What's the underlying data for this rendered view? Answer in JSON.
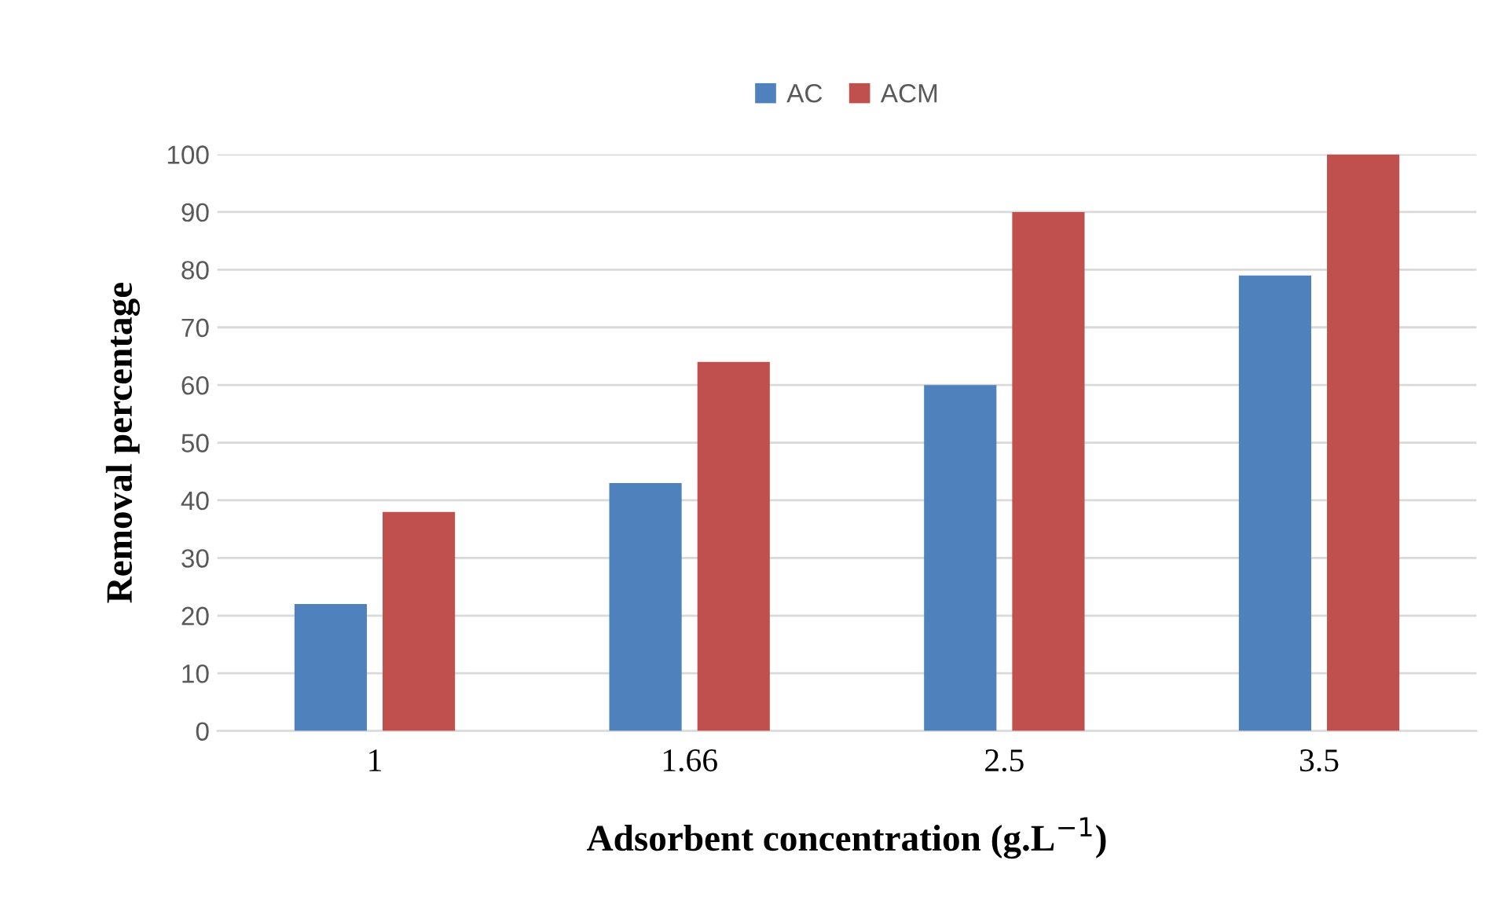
{
  "chart_data": {
    "type": "bar",
    "xlabel": "Adsorbent concentration (g.L$^{−1}$)",
    "ylabel": "Removal percentage",
    "categories": [
      "1",
      "1.66",
      "2.5",
      "3.5"
    ],
    "series": [
      {
        "name": "AC",
        "color": "#4f81bd",
        "values": [
          22,
          43,
          60,
          79
        ]
      },
      {
        "name": "ACM",
        "color": "#c0504d",
        "values": [
          38,
          64,
          90,
          100
        ]
      }
    ],
    "ylim": [
      0,
      100
    ],
    "yticks": [
      0,
      10,
      20,
      30,
      40,
      50,
      60,
      70,
      80,
      90,
      100
    ],
    "grid": "y",
    "legend": "top"
  }
}
